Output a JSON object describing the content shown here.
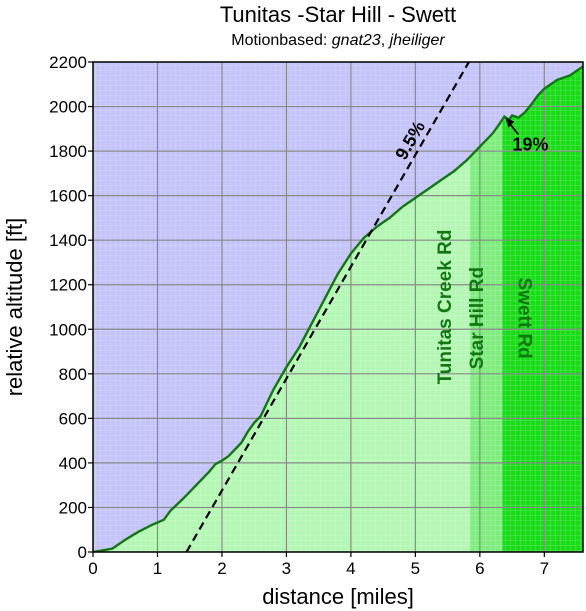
{
  "chart_data": {
    "type": "area",
    "title": "Tunitas -Star Hill - Swett",
    "subtitle": {
      "prefix": "Motionbased: ",
      "user1": "gnat23",
      "separator": ", ",
      "user2": "jheiliger"
    },
    "xlabel": "distance [miles]",
    "ylabel": "relative altitude [ft]",
    "xlim": [
      0,
      7.6
    ],
    "ylim": [
      0,
      2200
    ],
    "xticks": [
      "0",
      "1",
      "2",
      "3",
      "4",
      "5",
      "6",
      "7"
    ],
    "yticks": [
      "0",
      "200",
      "400",
      "600",
      "800",
      "1000",
      "1200",
      "1400",
      "1600",
      "1800",
      "2000",
      "2200"
    ],
    "grid": true,
    "series": [
      {
        "x": [
          0,
          0.1,
          0.3,
          0.5,
          0.7,
          0.9,
          1.1,
          1.2,
          1.4,
          1.6,
          1.8,
          1.9,
          2.0,
          2.1,
          2.3,
          2.4,
          2.5,
          2.6,
          2.7,
          2.8,
          2.9,
          3.0,
          3.2,
          3.4,
          3.6,
          3.8,
          4.0,
          4.2,
          4.4,
          4.6,
          4.8,
          5.0,
          5.2,
          5.4,
          5.6,
          5.8,
          5.9,
          6.0,
          6.1,
          6.2,
          6.3,
          6.38,
          6.45,
          6.5,
          6.6,
          6.7,
          6.8,
          6.9,
          7.0,
          7.1,
          7.2,
          7.3,
          7.4,
          7.5,
          7.6
        ],
        "y": [
          0,
          5,
          15,
          55,
          90,
          120,
          145,
          185,
          240,
          300,
          360,
          395,
          410,
          430,
          490,
          540,
          580,
          610,
          670,
          730,
          780,
          830,
          920,
          1030,
          1140,
          1250,
          1340,
          1410,
          1460,
          1500,
          1550,
          1590,
          1630,
          1670,
          1710,
          1760,
          1790,
          1820,
          1850,
          1880,
          1920,
          1955,
          1940,
          1960,
          1950,
          1975,
          2010,
          2050,
          2080,
          2100,
          2120,
          2130,
          2140,
          2160,
          2180
        ]
      }
    ],
    "reference_line": {
      "label": "9.5%",
      "x": [
        1.45,
        7.6
      ],
      "y": [
        0,
        3089
      ]
    },
    "segments": [
      {
        "label": "Tunitas Creek Rd",
        "x_start": 0,
        "x_end": 5.85,
        "color": "#b4f7b4"
      },
      {
        "label": "Star Hill Rd",
        "x_start": 5.85,
        "x_end": 6.35,
        "color": "#7eed7e"
      },
      {
        "label": "Swett Rd",
        "x_start": 6.35,
        "x_end": 7.6,
        "color": "#19dc19"
      }
    ],
    "annotation": {
      "text": "19%",
      "x": 6.38,
      "y": 1955
    },
    "colors": {
      "background": "#c4c4f8",
      "line": "#127712",
      "grid": "#8a8a8a",
      "road_label": "#127712"
    }
  }
}
